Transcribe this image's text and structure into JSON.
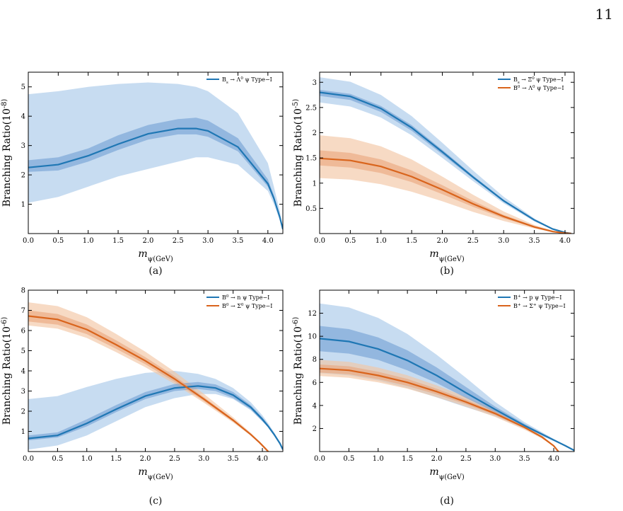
{
  "page_number": "11",
  "colors": {
    "blue": "#1f77b4",
    "orange": "#d9641c",
    "blue_band_outer": "#a9c9ea",
    "blue_band_inner": "#6f9fd3",
    "orange_band_outer": "#f2c6a4",
    "orange_band_inner": "#e9a57c"
  },
  "chart_data": [
    {
      "id": "a",
      "type": "line",
      "panel_label": "(a)",
      "xlabel": "m_ψ(GeV)",
      "ylabel": "Branching Ratio(10^-8)",
      "xlim": [
        0,
        4.25
      ],
      "ylim": [
        0,
        5.5
      ],
      "xticks": [
        0.0,
        0.5,
        1.0,
        1.5,
        2.0,
        2.5,
        3.0,
        3.5,
        4.0
      ],
      "yticks": [
        1,
        2,
        3,
        4,
        5
      ],
      "legend_position": "top-right",
      "x": [
        0.0,
        0.5,
        1.0,
        1.5,
        2.0,
        2.5,
        2.8,
        3.0,
        3.5,
        4.0,
        4.1,
        4.2,
        4.25
      ],
      "series": [
        {
          "name": "B_s → Λ^0 ψ Type−I",
          "color": "blue",
          "values": [
            2.25,
            2.35,
            2.65,
            3.05,
            3.4,
            3.58,
            3.58,
            3.5,
            2.95,
            1.7,
            1.2,
            0.55,
            0.15
          ],
          "inner_band": {
            "lower": [
              2.1,
              2.15,
              2.45,
              2.85,
              3.2,
              3.38,
              3.38,
              3.3,
              2.8,
              1.6,
              1.15,
              0.5,
              0.15
            ],
            "upper": [
              2.5,
              2.6,
              2.9,
              3.35,
              3.7,
              3.9,
              3.95,
              3.85,
              3.25,
              1.85,
              1.3,
              0.6,
              0.15
            ]
          },
          "outer_band": {
            "lower": [
              1.05,
              1.25,
              1.6,
              1.95,
              2.2,
              2.45,
              2.6,
              2.6,
              2.35,
              1.45,
              1.0,
              0.45,
              0.15
            ],
            "upper": [
              4.75,
              4.85,
              5.0,
              5.1,
              5.15,
              5.1,
              5.0,
              4.85,
              4.1,
              2.4,
              1.6,
              0.75,
              0.15
            ]
          }
        }
      ]
    },
    {
      "id": "b",
      "type": "line",
      "panel_label": "(b)",
      "xlabel": "m_ψ(GeV)",
      "ylabel": "Branching Ratio(10^-5)",
      "xlim": [
        0,
        4.15
      ],
      "ylim": [
        0,
        3.2
      ],
      "xticks": [
        0.0,
        0.5,
        1.0,
        1.5,
        2.0,
        2.5,
        3.0,
        3.5,
        4.0
      ],
      "yticks": [
        0.5,
        1,
        1.5,
        2,
        2.5,
        3
      ],
      "legend_position": "top-right",
      "x": [
        0.0,
        0.5,
        1.0,
        1.5,
        2.0,
        2.5,
        3.0,
        3.5,
        3.8,
        4.0,
        4.1
      ],
      "series": [
        {
          "name": "B_s → Ξ^0 ψ Type−I",
          "color": "blue",
          "values": [
            2.8,
            2.72,
            2.48,
            2.1,
            1.62,
            1.12,
            0.65,
            0.27,
            0.09,
            0.02,
            0.0
          ],
          "inner_band": {
            "lower": [
              2.73,
              2.65,
              2.41,
              2.04,
              1.57,
              1.09,
              0.63,
              0.26,
              0.08,
              0.02,
              0.0
            ],
            "upper": [
              2.85,
              2.77,
              2.53,
              2.15,
              1.66,
              1.15,
              0.67,
              0.28,
              0.09,
              0.02,
              0.0
            ]
          },
          "outer_band": {
            "lower": [
              2.6,
              2.52,
              2.3,
              1.95,
              1.5,
              1.04,
              0.6,
              0.24,
              0.08,
              0.02,
              0.0
            ],
            "upper": [
              3.1,
              3.01,
              2.75,
              2.33,
              1.8,
              1.25,
              0.73,
              0.3,
              0.1,
              0.02,
              0.0
            ]
          }
        },
        {
          "name": "B^0 → Λ^0 ψ Type−I",
          "color": "orange",
          "values": [
            1.49,
            1.45,
            1.33,
            1.13,
            0.87,
            0.59,
            0.34,
            0.13,
            0.04,
            0.01,
            0.0
          ],
          "inner_band": {
            "lower": [
              1.35,
              1.31,
              1.2,
              1.02,
              0.78,
              0.53,
              0.3,
              0.12,
              0.04,
              0.01,
              0.0
            ],
            "upper": [
              1.65,
              1.6,
              1.47,
              1.25,
              0.96,
              0.65,
              0.37,
              0.15,
              0.05,
              0.01,
              0.0
            ]
          },
          "outer_band": {
            "lower": [
              1.1,
              1.07,
              0.98,
              0.83,
              0.64,
              0.43,
              0.25,
              0.1,
              0.03,
              0.01,
              0.0
            ],
            "upper": [
              1.95,
              1.89,
              1.73,
              1.47,
              1.13,
              0.77,
              0.44,
              0.17,
              0.06,
              0.01,
              0.0
            ]
          }
        }
      ]
    },
    {
      "id": "c",
      "type": "line",
      "panel_label": "(c)",
      "xlabel": "m_ψ(GeV)",
      "ylabel": "Branching Ratio(10^-6)",
      "xlim": [
        0,
        4.35
      ],
      "ylim": [
        0,
        8
      ],
      "xticks": [
        0.0,
        0.5,
        1.0,
        1.5,
        2.0,
        2.5,
        3.0,
        3.5,
        4.0
      ],
      "yticks": [
        1,
        2,
        3,
        4,
        5,
        6,
        7,
        8
      ],
      "legend_position": "top-right",
      "x": [
        0.0,
        0.5,
        1.0,
        1.5,
        2.0,
        2.5,
        2.9,
        3.2,
        3.5,
        3.8,
        4.0,
        4.1,
        4.2,
        4.3,
        4.35
      ],
      "series": [
        {
          "name": "B^0 → n ψ Type−I",
          "color": "blue",
          "values": [
            0.65,
            0.8,
            1.4,
            2.1,
            2.75,
            3.15,
            3.25,
            3.15,
            2.8,
            2.2,
            1.6,
            1.25,
            0.85,
            0.4,
            0.1
          ],
          "inner_band": {
            "lower": [
              0.55,
              0.7,
              1.25,
              1.95,
              2.6,
              3.0,
              3.1,
              3.0,
              2.65,
              2.1,
              1.5,
              1.2,
              0.8,
              0.38,
              0.1
            ],
            "upper": [
              0.8,
              0.95,
              1.6,
              2.3,
              2.95,
              3.35,
              3.45,
              3.33,
              2.95,
              2.3,
              1.7,
              1.32,
              0.9,
              0.43,
              0.1
            ]
          },
          "outer_band": {
            "lower": [
              0.1,
              0.3,
              0.8,
              1.5,
              2.2,
              2.65,
              2.85,
              2.85,
              2.6,
              2.05,
              1.5,
              1.2,
              0.8,
              0.38,
              0.1
            ],
            "upper": [
              2.6,
              2.75,
              3.2,
              3.6,
              3.9,
              4.0,
              3.85,
              3.6,
              3.15,
              2.45,
              1.8,
              1.4,
              0.95,
              0.45,
              0.1
            ]
          }
        },
        {
          "name": "B^0 → Σ^0 ψ Type−I",
          "color": "orange",
          "x": [
            0.0,
            0.5,
            1.0,
            1.5,
            2.0,
            2.5,
            3.0,
            3.5,
            3.8,
            3.95,
            4.05,
            4.1
          ],
          "values": [
            6.72,
            6.55,
            6.05,
            5.3,
            4.5,
            3.6,
            2.6,
            1.55,
            0.85,
            0.45,
            0.15,
            0.0
          ],
          "inner_band": {
            "lower": [
              6.45,
              6.29,
              5.82,
              5.1,
              4.33,
              3.46,
              2.5,
              1.49,
              0.82,
              0.43,
              0.14,
              0.0
            ],
            "upper": [
              7.0,
              6.82,
              6.3,
              5.52,
              4.68,
              3.74,
              2.7,
              1.61,
              0.88,
              0.47,
              0.16,
              0.0
            ]
          },
          "outer_band": {
            "lower": [
              6.25,
              6.09,
              5.63,
              4.93,
              4.18,
              3.35,
              2.42,
              1.44,
              0.79,
              0.42,
              0.14,
              0.0
            ],
            "upper": [
              7.4,
              7.21,
              6.66,
              5.83,
              4.95,
              3.96,
              2.86,
              1.7,
              0.93,
              0.5,
              0.17,
              0.0
            ]
          }
        }
      ]
    },
    {
      "id": "d",
      "type": "line",
      "panel_label": "(d)",
      "xlabel": "m_ψ(GeV)",
      "ylabel": "Branching Ratio(10^-6)",
      "xlim": [
        0,
        4.35
      ],
      "ylim": [
        0,
        14
      ],
      "xticks": [
        0.0,
        0.5,
        1.0,
        1.5,
        2.0,
        2.5,
        3.0,
        3.5,
        4.0
      ],
      "yticks": [
        2,
        4,
        6,
        8,
        10,
        12
      ],
      "legend_position": "top-right",
      "x": [
        0.0,
        0.5,
        1.0,
        1.5,
        2.0,
        2.5,
        3.0,
        3.5,
        4.0,
        4.2,
        4.35
      ],
      "series": [
        {
          "name": "B^+ → p ψ Type−I",
          "color": "blue",
          "values": [
            9.8,
            9.55,
            8.9,
            7.9,
            6.6,
            5.1,
            3.65,
            2.25,
            1.0,
            0.5,
            0.1
          ],
          "inner_band": {
            "lower": [
              8.7,
              8.5,
              7.95,
              7.05,
              5.95,
              4.65,
              3.4,
              2.12,
              0.95,
              0.48,
              0.1
            ],
            "upper": [
              10.9,
              10.62,
              9.9,
              8.78,
              7.3,
              5.6,
              3.9,
              2.4,
              1.05,
              0.52,
              0.1
            ]
          },
          "outer_band": {
            "lower": [
              6.8,
              6.6,
              6.15,
              5.5,
              4.7,
              3.85,
              3.05,
              2.0,
              0.9,
              0.45,
              0.1
            ],
            "upper": [
              12.85,
              12.5,
              11.6,
              10.2,
              8.4,
              6.4,
              4.3,
              2.55,
              1.1,
              0.55,
              0.1
            ]
          }
        },
        {
          "name": "B^+ → Σ^+ ψ Type−I",
          "color": "orange",
          "x": [
            0.0,
            0.5,
            1.0,
            1.5,
            2.0,
            2.5,
            3.0,
            3.5,
            3.8,
            4.0,
            4.08
          ],
          "values": [
            7.2,
            7.05,
            6.6,
            6.0,
            5.2,
            4.3,
            3.3,
            2.1,
            1.25,
            0.5,
            0.0
          ],
          "inner_band": {
            "lower": [
              6.85,
              6.7,
              6.28,
              5.7,
              4.95,
              4.1,
              3.15,
              2.0,
              1.2,
              0.48,
              0.0
            ],
            "upper": [
              7.55,
              7.4,
              6.92,
              6.3,
              5.45,
              4.5,
              3.45,
              2.2,
              1.3,
              0.52,
              0.0
            ]
          },
          "outer_band": {
            "lower": [
              6.55,
              6.4,
              6.0,
              5.45,
              4.72,
              3.9,
              3.0,
              1.9,
              1.13,
              0.45,
              0.0
            ],
            "upper": [
              7.95,
              7.78,
              7.28,
              6.62,
              5.74,
              4.75,
              3.64,
              2.32,
              1.38,
              0.55,
              0.0
            ]
          }
        }
      ]
    }
  ]
}
